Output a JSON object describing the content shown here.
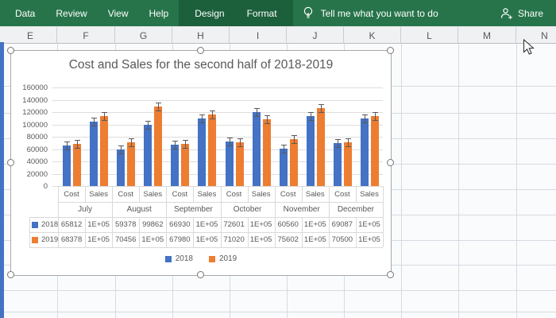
{
  "ribbon": {
    "main_tabs": [
      "Data",
      "Review",
      "View",
      "Help"
    ],
    "contextual_tabs": [
      "Design",
      "Format"
    ],
    "tell_me_label": "Tell me what you want to do",
    "share_label": "Share"
  },
  "sheet": {
    "column_headers": [
      "E",
      "F",
      "G",
      "H",
      "I",
      "J",
      "K",
      "L",
      "M",
      "N"
    ]
  },
  "chart_data": {
    "type": "bar",
    "title": "Cost and Sales for the second half of 2018-2019",
    "months": [
      "July",
      "August",
      "September",
      "October",
      "November",
      "December"
    ],
    "sub_categories": [
      "Cost",
      "Sales"
    ],
    "slot_labels": [
      "Cost",
      "Sales",
      "Cost",
      "Sales",
      "Cost",
      "Sales",
      "Cost",
      "Sales",
      "Cost",
      "Sales",
      "Cost",
      "Sales"
    ],
    "ylim": [
      0,
      160000
    ],
    "ytick_step": 20000,
    "y_tick_labels": [
      "0",
      "20000",
      "40000",
      "60000",
      "80000",
      "100000",
      "120000",
      "140000",
      "160000"
    ],
    "grid": true,
    "legend_position": "bottom",
    "error_bar_value": 6500,
    "series": [
      {
        "name": "2018",
        "color": "#4472C4",
        "values": [
          65812,
          105000,
          59378,
          99862,
          66930,
          110000,
          72601,
          120000,
          60560,
          113000,
          69087,
          110000
        ],
        "display": [
          "65812",
          "1E+05",
          "59378",
          "99862",
          "66930",
          "1E+05",
          "72601",
          "1E+05",
          "60560",
          "1E+05",
          "69087",
          "1E+05"
        ]
      },
      {
        "name": "2019",
        "color": "#ED7D31",
        "values": [
          68378,
          113000,
          70456,
          129000,
          67980,
          116000,
          71020,
          108000,
          75602,
          127000,
          70500,
          113000
        ],
        "display": [
          "68378",
          "1E+05",
          "70456",
          "1E+05",
          "67980",
          "1E+05",
          "71020",
          "1E+05",
          "75602",
          "1E+05",
          "70500",
          "1E+05"
        ]
      }
    ],
    "legend": [
      "2018",
      "2019"
    ]
  },
  "colors": {
    "series_2018": "#4472C4",
    "series_2019": "#ED7D31",
    "ribbon_green": "#27744B",
    "ribbon_contextual": "#1C5F3B",
    "chart_text": "#595959",
    "left_strip": "#4472C4"
  }
}
